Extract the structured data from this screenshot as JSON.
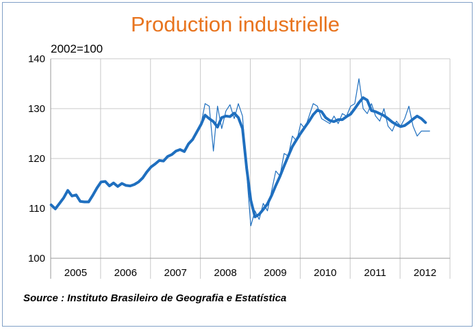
{
  "title": "Production industrielle",
  "unit_note": "2002=100",
  "source": "Source : Instituto Brasileiro de Geografia e Estatística",
  "colors": {
    "title": "#e8741e",
    "series": "#1f6fbf",
    "grid": "#c8c8c8",
    "frame": "#7f9fc6"
  },
  "chart_data": {
    "type": "line",
    "title": "Production industrielle",
    "ylim": [
      100,
      140
    ],
    "yticks": [
      "100",
      "110",
      "120",
      "130",
      "140"
    ],
    "xlim": [
      2004.99,
      2012.99
    ],
    "xtick_labels": [
      "2005",
      "2006",
      "2007",
      "2008",
      "2009",
      "2010",
      "2011",
      "2012"
    ],
    "grid": true,
    "legend": "none",
    "series": [
      {
        "style": "thick",
        "x": [
          2005.0,
          2005.083,
          2005.167,
          2005.25,
          2005.333,
          2005.417,
          2005.5,
          2005.583,
          2005.667,
          2005.75,
          2005.833,
          2005.917,
          2006.0,
          2006.083,
          2006.167,
          2006.25,
          2006.333,
          2006.417,
          2006.5,
          2006.583,
          2006.667,
          2006.75,
          2006.833,
          2006.917,
          2007.0,
          2007.083,
          2007.167,
          2007.25,
          2007.333,
          2007.417,
          2007.5,
          2007.583,
          2007.667,
          2007.75,
          2007.833,
          2007.917,
          2008.0,
          2008.083,
          2008.167,
          2008.25,
          2008.333,
          2008.417,
          2008.5,
          2008.583,
          2008.667,
          2008.75,
          2008.833,
          2008.917,
          2009.0,
          2009.083,
          2009.167,
          2009.25,
          2009.333,
          2009.417,
          2009.5,
          2009.583,
          2009.667,
          2009.75,
          2009.833,
          2009.917,
          2010.0,
          2010.083,
          2010.167,
          2010.25,
          2010.333,
          2010.417,
          2010.5,
          2010.583,
          2010.667,
          2010.75,
          2010.833,
          2010.917,
          2011.0,
          2011.083,
          2011.167,
          2011.25,
          2011.333,
          2011.417,
          2011.5,
          2011.583,
          2011.667,
          2011.75,
          2011.833,
          2011.917,
          2012.0,
          2012.083,
          2012.167,
          2012.25
        ],
        "y": [
          110.7,
          109.9,
          111.0,
          112.1,
          113.6,
          112.5,
          112.7,
          111.4,
          111.3,
          111.3,
          112.6,
          114.1,
          115.3,
          115.4,
          114.5,
          115.1,
          114.4,
          115.0,
          114.6,
          114.5,
          114.8,
          115.3,
          116.1,
          117.3,
          118.3,
          118.9,
          119.6,
          119.5,
          120.4,
          120.8,
          121.5,
          121.8,
          121.4,
          122.9,
          123.8,
          125.3,
          126.8,
          128.7,
          128.0,
          127.4,
          126.3,
          128.2,
          128.5,
          128.4,
          129.1,
          128.2,
          126.0,
          118.0,
          111.6,
          108.3,
          108.8,
          109.8,
          110.9,
          112.6,
          114.6,
          116.4,
          118.5,
          120.5,
          122.4,
          123.8,
          125.1,
          126.3,
          127.5,
          128.8,
          129.7,
          129.4,
          128.2,
          127.6,
          127.4,
          127.8,
          127.8,
          128.4,
          128.9,
          130.0,
          131.2,
          132.2,
          131.7,
          129.6,
          129.4,
          129.0,
          128.6,
          128.0,
          127.3,
          126.8,
          126.4,
          126.6,
          127.2,
          127.9
        ],
        "x_tail": [
          2012.333,
          2012.417,
          2012.5
        ],
        "y_tail": [
          128.5,
          128.0,
          127.2
        ]
      },
      {
        "style": "thin",
        "x": [
          2007.917,
          2008.0,
          2008.083,
          2008.167,
          2008.25,
          2008.333,
          2008.417,
          2008.5,
          2008.583,
          2008.667,
          2008.75,
          2008.833,
          2008.917,
          2009.0,
          2009.083,
          2009.167,
          2009.25,
          2009.333,
          2009.417,
          2009.5,
          2009.583,
          2009.667,
          2009.75,
          2009.833,
          2009.917,
          2010.0,
          2010.083,
          2010.167,
          2010.25,
          2010.333,
          2010.417,
          2010.5,
          2010.583,
          2010.667,
          2010.75,
          2010.833,
          2010.917,
          2011.0,
          2011.083,
          2011.167,
          2011.25,
          2011.333,
          2011.417,
          2011.5,
          2011.583,
          2011.667,
          2011.75,
          2011.833,
          2011.917,
          2012.0,
          2012.083,
          2012.167,
          2012.25,
          2012.333,
          2012.417,
          2012.5,
          2012.583
        ],
        "y": [
          125.3,
          126.8,
          131.0,
          130.5,
          121.5,
          130.5,
          126.0,
          129.5,
          130.8,
          128.0,
          131.0,
          128.5,
          117.0,
          106.5,
          109.5,
          107.8,
          111.0,
          109.5,
          113.5,
          117.5,
          116.5,
          121.0,
          120.5,
          124.5,
          123.5,
          127.0,
          126.0,
          128.5,
          131.0,
          130.5,
          128.0,
          127.5,
          127.0,
          128.5,
          127.0,
          129.0,
          128.5,
          130.5,
          131.0,
          136.0,
          130.0,
          129.0,
          131.0,
          128.5,
          127.5,
          130.0,
          126.5,
          125.5,
          127.5,
          126.5,
          128.0,
          130.5,
          126.5,
          124.5,
          125.5,
          125.5,
          125.5
        ]
      }
    ]
  }
}
